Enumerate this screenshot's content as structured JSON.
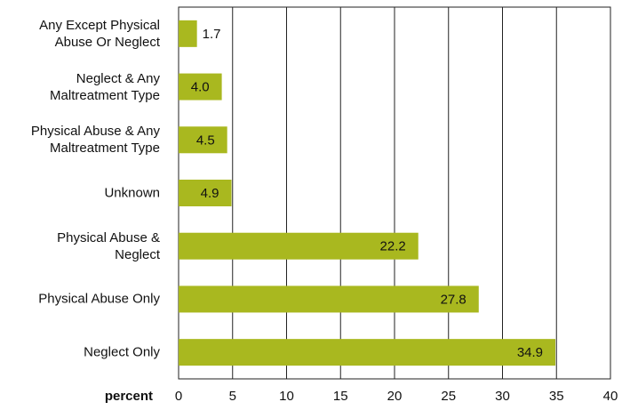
{
  "chart_data": {
    "type": "bar",
    "orientation": "horizontal",
    "categories": [
      "Any Except Physical\nAbuse Or Neglect",
      "Neglect & Any\nMaltreatment Type",
      "Physical Abuse & Any\nMaltreatment Type",
      "Unknown",
      "Physical Abuse &\nNeglect",
      "Physical Abuse Only",
      "Neglect Only"
    ],
    "values": [
      1.7,
      4.0,
      4.5,
      4.9,
      22.2,
      27.8,
      34.9
    ],
    "value_labels": [
      "1.7",
      "4.0",
      "4.5",
      "4.9",
      "22.2",
      "27.8",
      "34.9"
    ],
    "color": "#a9b81f",
    "x_label": "percent",
    "xlim": [
      0,
      40
    ],
    "xticks": [
      0,
      5,
      10,
      15,
      20,
      25,
      30,
      35,
      40
    ],
    "grid": true
  }
}
